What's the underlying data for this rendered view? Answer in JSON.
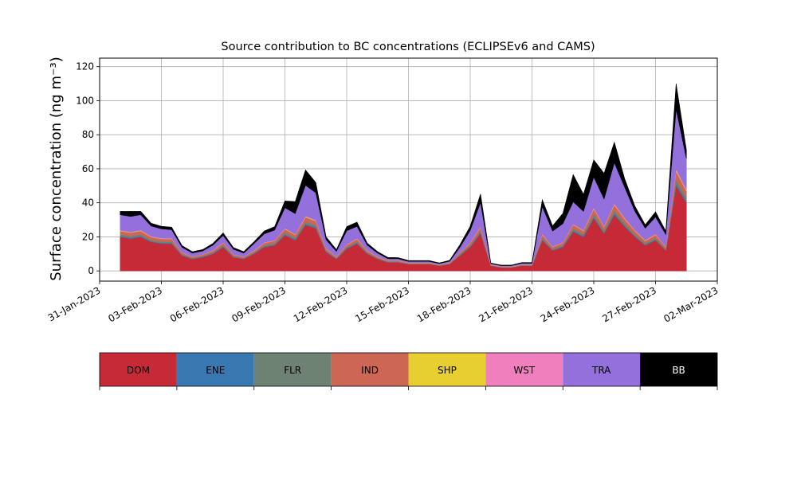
{
  "chart_data": {
    "type": "area",
    "stacked": true,
    "title": "Source contribution to BC concentrations (ECLIPSEv6 and CAMS)",
    "ylabel": "Surface concentration (ng m⁻³)",
    "xlabel": "",
    "xlim": [
      "2023-01-31",
      "2023-03-02"
    ],
    "ylim": [
      -6,
      125
    ],
    "grid": true,
    "legend_placement": "bottom colorbar",
    "x_tick_labels": [
      "31-Jan-2023",
      "03-Feb-2023",
      "06-Feb-2023",
      "09-Feb-2023",
      "12-Feb-2023",
      "15-Feb-2023",
      "18-Feb-2023",
      "21-Feb-2023",
      "24-Feb-2023",
      "27-Feb-2023",
      "02-Mar-2023"
    ],
    "y_tick_labels": [
      "0",
      "20",
      "40",
      "60",
      "80",
      "100",
      "120"
    ],
    "y_ticks": [
      0,
      20,
      40,
      60,
      80,
      100,
      120
    ],
    "x": [
      "2023-02-01",
      "2023-02-01T12",
      "2023-02-02",
      "2023-02-02T12",
      "2023-02-03",
      "2023-02-03T12",
      "2023-02-04",
      "2023-02-04T12",
      "2023-02-05",
      "2023-02-05T12",
      "2023-02-06",
      "2023-02-06T12",
      "2023-02-07",
      "2023-02-07T12",
      "2023-02-08",
      "2023-02-08T12",
      "2023-02-09",
      "2023-02-09T12",
      "2023-02-10",
      "2023-02-10T12",
      "2023-02-11",
      "2023-02-11T12",
      "2023-02-12",
      "2023-02-12T12",
      "2023-02-13",
      "2023-02-13T12",
      "2023-02-14",
      "2023-02-14T12",
      "2023-02-15",
      "2023-02-15T12",
      "2023-02-16",
      "2023-02-16T12",
      "2023-02-17",
      "2023-02-17T12",
      "2023-02-18",
      "2023-02-18T12",
      "2023-02-19",
      "2023-02-19T12",
      "2023-02-20",
      "2023-02-20T12",
      "2023-02-21",
      "2023-02-21T12",
      "2023-02-22",
      "2023-02-22T12",
      "2023-02-23",
      "2023-02-23T12",
      "2023-02-24",
      "2023-02-24T12",
      "2023-02-25",
      "2023-02-25T12",
      "2023-02-26",
      "2023-02-26T12",
      "2023-02-27",
      "2023-02-27T12",
      "2023-02-28",
      "2023-02-28T12"
    ],
    "series": [
      {
        "name": "DOM",
        "color": "#c52a36",
        "values": [
          20,
          19,
          20,
          17,
          16,
          16,
          9,
          7,
          8,
          10,
          14,
          8,
          7,
          10,
          14,
          15,
          21,
          18,
          27,
          25,
          11,
          7,
          13,
          16,
          10,
          7,
          5,
          5,
          4,
          4,
          4,
          3,
          4,
          9,
          14,
          22,
          3,
          2,
          2,
          3,
          3,
          18,
          12,
          14,
          23,
          20,
          31,
          22,
          33,
          26,
          20,
          15,
          18,
          12,
          50,
          40
        ]
      },
      {
        "name": "ENE",
        "color": "#3a78b2",
        "values": [
          0.5,
          0.5,
          0.5,
          0.4,
          0.4,
          0.4,
          0.3,
          0.2,
          0.3,
          0.3,
          0.4,
          0.3,
          0.2,
          0.3,
          0.4,
          0.4,
          0.5,
          0.5,
          0.6,
          0.6,
          0.3,
          0.2,
          0.4,
          0.4,
          0.3,
          0.2,
          0.2,
          0.2,
          0.1,
          0.1,
          0.1,
          0.1,
          0.1,
          0.3,
          0.4,
          0.5,
          0.1,
          0.1,
          0.1,
          0.1,
          0.1,
          0.5,
          0.3,
          0.4,
          0.6,
          0.5,
          0.7,
          0.5,
          0.8,
          0.6,
          0.5,
          0.4,
          0.5,
          0.3,
          1.2,
          1.0
        ]
      },
      {
        "name": "FLR",
        "color": "#6e8273",
        "values": [
          1,
          1,
          1,
          0.8,
          0.8,
          0.8,
          0.5,
          0.4,
          0.4,
          0.5,
          0.7,
          0.4,
          0.4,
          0.5,
          0.7,
          0.8,
          1,
          0.9,
          1.3,
          1.2,
          0.6,
          0.4,
          0.6,
          0.8,
          0.5,
          0.4,
          0.3,
          0.3,
          0.2,
          0.2,
          0.2,
          0.2,
          0.2,
          0.5,
          0.7,
          1,
          0.2,
          0.1,
          0.1,
          0.2,
          0.2,
          1,
          0.6,
          0.7,
          1.2,
          1,
          1.6,
          1.1,
          1.7,
          1.3,
          1,
          0.8,
          0.9,
          0.6,
          2.5,
          2
        ]
      },
      {
        "name": "IND",
        "color": "#cd6654",
        "values": [
          2,
          2,
          2,
          1.7,
          1.6,
          1.6,
          0.9,
          0.7,
          0.8,
          1,
          1.4,
          0.8,
          0.7,
          1,
          1.4,
          1.5,
          2.1,
          1.8,
          2.7,
          2.5,
          1.1,
          0.7,
          1.3,
          1.6,
          1,
          0.7,
          0.5,
          0.5,
          0.4,
          0.4,
          0.4,
          0.3,
          0.4,
          0.9,
          1.4,
          2.2,
          0.3,
          0.2,
          0.2,
          0.3,
          0.3,
          1.8,
          1.2,
          1.4,
          2.3,
          2,
          3.1,
          2.2,
          3.3,
          2.6,
          2,
          1.5,
          1.8,
          1.2,
          5,
          4
        ]
      },
      {
        "name": "SHP",
        "color": "#e8cf31",
        "values": [
          0.2,
          0.2,
          0.2,
          0.2,
          0.2,
          0.2,
          0.1,
          0.1,
          0.1,
          0.1,
          0.1,
          0.1,
          0.1,
          0.1,
          0.1,
          0.1,
          0.2,
          0.2,
          0.3,
          0.2,
          0.1,
          0.1,
          0.1,
          0.2,
          0.1,
          0.1,
          0.1,
          0.1,
          0.1,
          0.1,
          0.1,
          0.1,
          0.1,
          0.1,
          0.1,
          0.2,
          0.1,
          0.1,
          0.1,
          0.1,
          0.1,
          0.2,
          0.1,
          0.1,
          0.2,
          0.2,
          0.3,
          0.2,
          0.3,
          0.3,
          0.2,
          0.2,
          0.2,
          0.1,
          0.5,
          0.4
        ]
      },
      {
        "name": "WST",
        "color": "#f07fbe",
        "values": [
          0.3,
          0.3,
          0.3,
          0.3,
          0.2,
          0.2,
          0.1,
          0.1,
          0.1,
          0.2,
          0.2,
          0.1,
          0.1,
          0.2,
          0.2,
          0.2,
          0.3,
          0.3,
          0.4,
          0.4,
          0.2,
          0.1,
          0.2,
          0.2,
          0.2,
          0.1,
          0.1,
          0.1,
          0.1,
          0.1,
          0.1,
          0.1,
          0.1,
          0.1,
          0.2,
          0.3,
          0.1,
          0.1,
          0.1,
          0.1,
          0.1,
          0.3,
          0.2,
          0.2,
          0.3,
          0.3,
          0.5,
          0.3,
          0.5,
          0.4,
          0.3,
          0.2,
          0.3,
          0.2,
          0.8,
          0.6
        ]
      },
      {
        "name": "TRA",
        "color": "#9370db",
        "values": [
          9,
          9,
          9,
          6,
          5.5,
          5,
          3,
          2,
          2,
          3,
          4,
          3,
          2,
          4,
          5,
          6,
          12,
          12,
          18,
          16,
          5,
          3,
          8,
          7,
          3,
          2,
          1,
          1,
          0.7,
          0.7,
          0.7,
          0.5,
          0.8,
          3,
          7,
          14,
          0.5,
          0.5,
          0.5,
          0.7,
          0.7,
          16,
          9,
          11,
          13,
          11,
          18,
          16,
          24,
          18,
          11,
          7,
          10,
          7,
          35,
          18
        ]
      },
      {
        "name": "BB",
        "color": "#000000",
        "values": [
          2,
          3,
          2,
          1.6,
          1.5,
          1.5,
          1,
          0.8,
          0.8,
          1,
          1.5,
          1,
          0.8,
          1,
          1.7,
          2,
          4,
          7,
          9,
          6,
          1.7,
          1,
          2.4,
          2.5,
          1.2,
          0.8,
          0.7,
          0.6,
          0.5,
          0.5,
          0.5,
          0.4,
          0.5,
          1.5,
          2.5,
          5,
          0.3,
          0.3,
          0.3,
          0.4,
          0.4,
          4,
          3,
          6,
          16,
          10,
          10,
          15,
          12,
          5,
          3,
          2,
          3,
          2,
          15,
          5
        ]
      }
    ]
  }
}
